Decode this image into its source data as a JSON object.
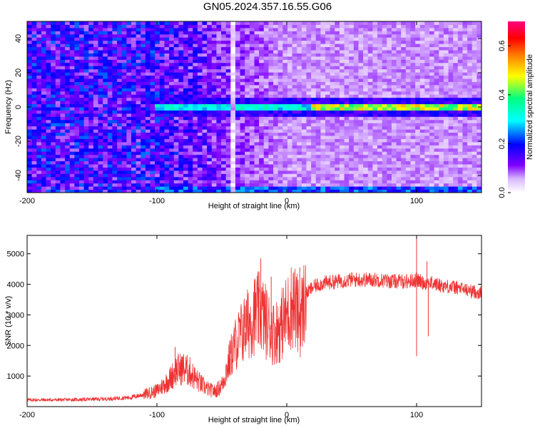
{
  "title": "GN05.2024.357.16.55.G06",
  "chart_data": [
    {
      "type": "heatmap",
      "xlabel": "Height of straight line (km)",
      "ylabel": "Frequency (Hz)",
      "xlim": [
        -200,
        150
      ],
      "ylim": [
        -50,
        50
      ],
      "xticks": [
        -200,
        -100,
        0,
        100
      ],
      "yticks": [
        -40,
        -20,
        0,
        20,
        40
      ],
      "colorbar": {
        "label": "Normalized spectral amplitude",
        "range": [
          0,
          0.7
        ],
        "ticks": [
          0.0,
          0.2,
          0.4,
          0.6
        ],
        "colormap": [
          "#ffffff",
          "#8000ff",
          "#0000ff",
          "#00ffff",
          "#00ff80",
          "#ffff00",
          "#ff8000",
          "#ff0000",
          "#ff0080"
        ]
      },
      "features": {
        "carrier_frequency_hz": 0,
        "carrier_start_km": -100,
        "carrier_peak_range_km": [
          20,
          140
        ],
        "carrier_peak_amplitude": 0.6,
        "background_amplitude_below_minus100km": 0.15,
        "background_amplitude_above_0km": 0.05,
        "vertical_gap_km": -40,
        "edge_band_frequency_hz": -48
      }
    },
    {
      "type": "line",
      "xlabel": "Height of straight line (km)",
      "ylabel": "SNR (10 * v/v)",
      "xlim": [
        -200,
        150
      ],
      "ylim": [
        0,
        5600
      ],
      "xticks": [
        -200,
        -100,
        0,
        100
      ],
      "yticks": [
        1000,
        2000,
        3000,
        4000,
        5000
      ],
      "color": "#ee3333",
      "series": [
        {
          "x": [
            -200,
            -180,
            -160,
            -140,
            -120,
            -110,
            -100,
            -95,
            -90,
            -85,
            -80,
            -75,
            -70,
            -65,
            -60,
            -55,
            -50,
            -45,
            -40,
            -35,
            -30,
            -25,
            -20,
            -15,
            -10,
            -5,
            0,
            5,
            10,
            15,
            20,
            25,
            30,
            40,
            50,
            60,
            70,
            80,
            90,
            95,
            100,
            105,
            110,
            120,
            130,
            140,
            150
          ],
          "values": [
            220,
            220,
            230,
            250,
            300,
            400,
            520,
            700,
            900,
            1200,
            1250,
            1150,
            900,
            700,
            550,
            500,
            700,
            1400,
            2000,
            2400,
            2700,
            3000,
            3100,
            2700,
            2400,
            2600,
            3000,
            3400,
            2800,
            3700,
            3900,
            4000,
            4050,
            4100,
            4150,
            4150,
            4150,
            4100,
            4100,
            4100,
            4150,
            4050,
            4050,
            3950,
            3900,
            3800,
            3700
          ]
        }
      ],
      "spikes": [
        {
          "x": -86,
          "y": 1950
        },
        {
          "x": -32,
          "y": 3300
        },
        {
          "x": -20,
          "y": 4850
        },
        {
          "x": -12,
          "y": 4250
        },
        {
          "x": 10,
          "y": 4550
        },
        {
          "x": 100,
          "y": 5600
        },
        {
          "x": 100,
          "y": 1650
        },
        {
          "x": 108,
          "y": 4750
        },
        {
          "x": 109,
          "y": 2300
        }
      ]
    }
  ]
}
